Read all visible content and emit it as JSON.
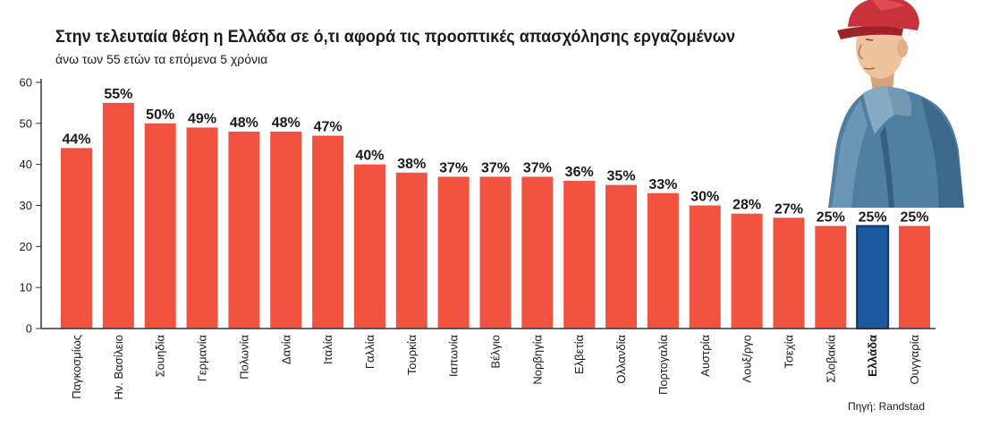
{
  "chart_data": {
    "type": "bar",
    "title": "Στην τελευταία θέση η Ελλάδα σε ό,τι αφορά τις προοπτικές απασχόλησης εργαζομένων",
    "subtitle": "άνω των 55 ετών τα επόμενα 5 χρόνια",
    "categories": [
      "Παγκοσμίως",
      "Ην. Βασίλειο",
      "Σουηδία",
      "Γερμανία",
      "Πολωνία",
      "Δανία",
      "Ιταλία",
      "Γαλλία",
      "Τουρκία",
      "Ιαπωνία",
      "Βέλγιο",
      "Νορβηγία",
      "Ελβετία",
      "Ολλανδία",
      "Πορτογαλία",
      "Αυστρία",
      "Λουξ/ργο",
      "Τσεχία",
      "Σλοβακία",
      "Ελλάδα",
      "Ουγγαρία"
    ],
    "values": [
      44,
      55,
      50,
      49,
      48,
      48,
      47,
      40,
      38,
      37,
      37,
      37,
      36,
      35,
      33,
      30,
      28,
      27,
      25,
      25,
      25
    ],
    "unit": "%",
    "ylim": [
      0,
      60
    ],
    "yticks": [
      0,
      10,
      20,
      30,
      40,
      50,
      60
    ],
    "grid": false,
    "highlight": "Ελλάδα",
    "source": "Πηγή: Randstad",
    "colors": {
      "bar": "#f15340",
      "highlight": "#1d58a0",
      "highlight_border": "#0f3468"
    }
  }
}
